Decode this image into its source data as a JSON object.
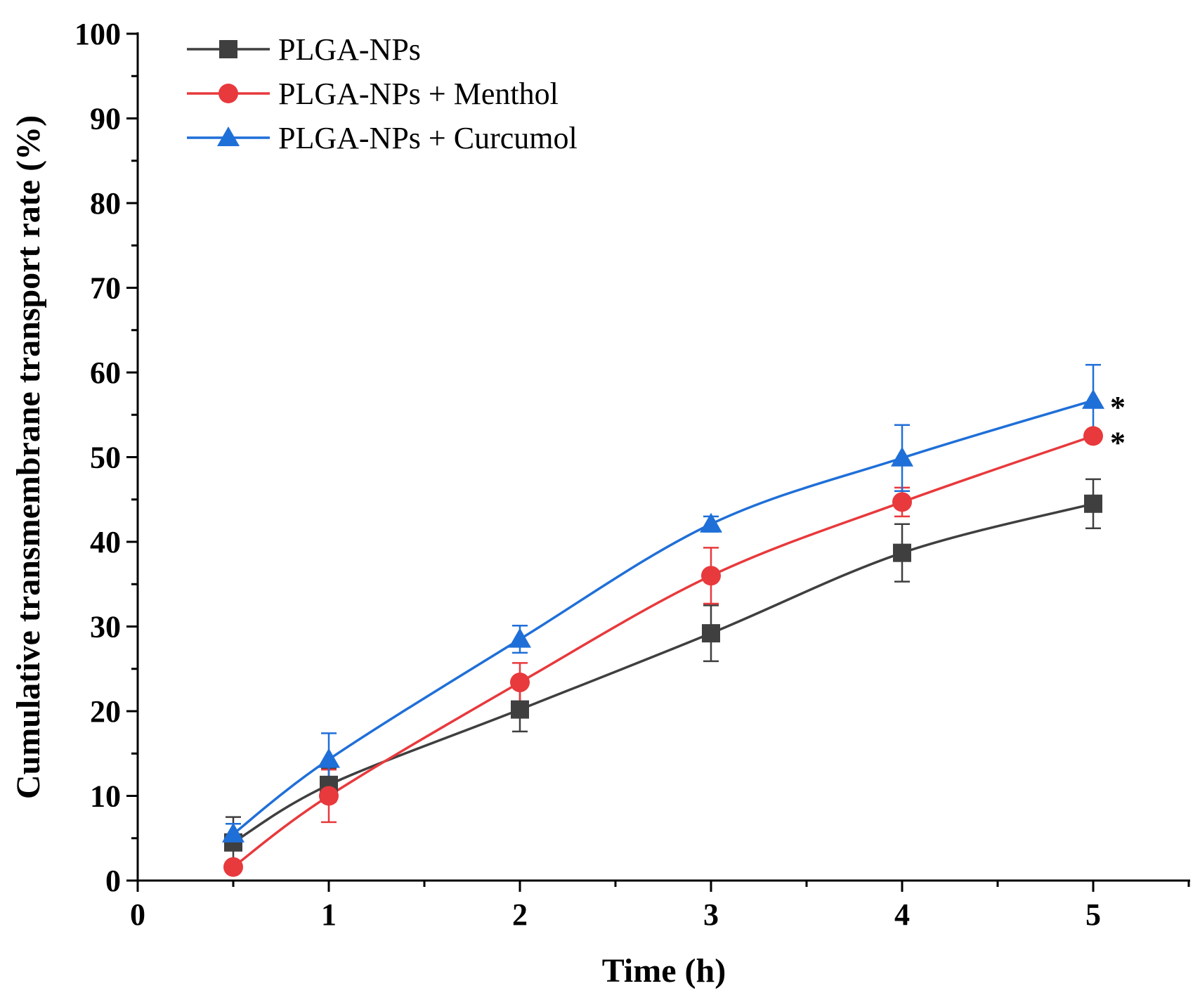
{
  "chart_data": {
    "type": "line",
    "xlabel": "Time (h)",
    "ylabel": "Cumulative transmembrane transport rate (%)",
    "xlim": [
      0,
      5.5
    ],
    "ylim": [
      0,
      100
    ],
    "x_ticks": [
      "0",
      "1",
      "2",
      "3",
      "4",
      "5"
    ],
    "y_ticks": [
      "0",
      "10",
      "20",
      "30",
      "40",
      "50",
      "60",
      "70",
      "80",
      "90",
      "100"
    ],
    "grid": false,
    "legend_position": "top-left",
    "x": [
      0.5,
      1,
      2,
      3,
      4,
      5
    ],
    "series": [
      {
        "name": "PLGA-NPs",
        "marker": "square",
        "color": "#3f3f3f",
        "values": [
          4.5,
          11.3,
          20.2,
          29.2,
          38.7,
          44.5
        ],
        "errors": [
          3.0,
          2.0,
          2.6,
          3.3,
          3.4,
          2.9
        ]
      },
      {
        "name": "PLGA-NPs + Menthol",
        "marker": "circle",
        "color": "#e8393c",
        "values": [
          1.6,
          10.0,
          23.4,
          36.0,
          44.7,
          52.5
        ],
        "errors": [
          0.5,
          3.1,
          2.3,
          3.3,
          1.7,
          0.5
        ]
      },
      {
        "name": "PLGA-NPs + Curcumol",
        "marker": "triangle",
        "color": "#1f6fd8",
        "values": [
          5.5,
          14.3,
          28.5,
          42.1,
          49.9,
          56.7
        ],
        "errors": [
          1.2,
          3.1,
          1.6,
          0.9,
          3.9,
          4.2
        ]
      }
    ],
    "annotations": [
      {
        "text": "*",
        "series": "PLGA-NPs + Curcumol",
        "x": 5,
        "y": 56.7
      },
      {
        "text": "*",
        "series": "PLGA-NPs + Menthol",
        "x": 5,
        "y": 52.5
      }
    ]
  }
}
